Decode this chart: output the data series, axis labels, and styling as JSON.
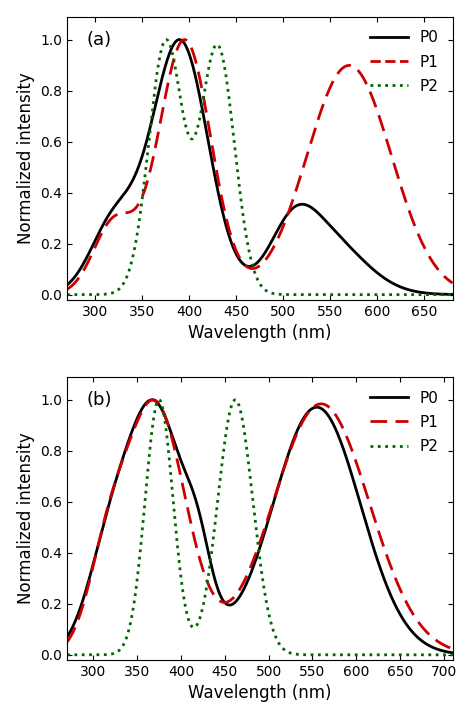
{
  "panel_a": {
    "title": "(a)",
    "xlabel": "Wavelength (nm)",
    "ylabel": "Normalized intensity",
    "xlim": [
      270,
      680
    ],
    "ylim": [
      -0.02,
      1.09
    ],
    "xticks": [
      300,
      350,
      400,
      450,
      500,
      550,
      600,
      650
    ],
    "yticks": [
      0.0,
      0.2,
      0.4,
      0.6,
      0.8,
      1.0
    ],
    "P0_color": "#000000",
    "P1_color": "#cc0000",
    "P2_color": "#006600"
  },
  "panel_b": {
    "title": "(b)",
    "xlabel": "Wavelength (nm)",
    "ylabel": "Normalized intensity",
    "xlim": [
      270,
      710
    ],
    "ylim": [
      -0.02,
      1.09
    ],
    "xticks": [
      300,
      350,
      400,
      450,
      500,
      550,
      600,
      650,
      700
    ],
    "yticks": [
      0.0,
      0.2,
      0.4,
      0.6,
      0.8,
      1.0
    ],
    "P0_color": "#000000",
    "P1_color": "#cc0000",
    "P2_color": "#006600"
  }
}
